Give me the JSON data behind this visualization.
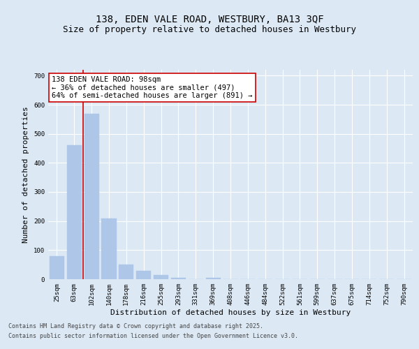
{
  "title_line1": "138, EDEN VALE ROAD, WESTBURY, BA13 3QF",
  "title_line2": "Size of property relative to detached houses in Westbury",
  "xlabel": "Distribution of detached houses by size in Westbury",
  "ylabel": "Number of detached properties",
  "categories": [
    "25sqm",
    "63sqm",
    "102sqm",
    "140sqm",
    "178sqm",
    "216sqm",
    "255sqm",
    "293sqm",
    "331sqm",
    "369sqm",
    "408sqm",
    "446sqm",
    "484sqm",
    "522sqm",
    "561sqm",
    "599sqm",
    "637sqm",
    "675sqm",
    "714sqm",
    "752sqm",
    "790sqm"
  ],
  "values": [
    80,
    460,
    570,
    210,
    50,
    30,
    15,
    5,
    0,
    5,
    0,
    0,
    0,
    0,
    0,
    0,
    0,
    0,
    0,
    0,
    0
  ],
  "bar_color": "#aec6e8",
  "bar_edge_color": "#aec6e8",
  "vline_color": "#cc0000",
  "annotation_text": "138 EDEN VALE ROAD: 98sqm\n← 36% of detached houses are smaller (497)\n64% of semi-detached houses are larger (891) →",
  "annotation_box_color": "#cc0000",
  "annotation_text_color": "#000000",
  "background_color": "#dce9f5",
  "plot_bg_color": "#dce9f5",
  "ylim": [
    0,
    720
  ],
  "yticks": [
    0,
    100,
    200,
    300,
    400,
    500,
    600,
    700
  ],
  "footer_line1": "Contains HM Land Registry data © Crown copyright and database right 2025.",
  "footer_line2": "Contains public sector information licensed under the Open Government Licence v3.0.",
  "grid_color": "#ffffff",
  "title_fontsize": 10,
  "subtitle_fontsize": 9,
  "axis_label_fontsize": 8,
  "tick_fontsize": 6.5,
  "annotation_fontsize": 7.5,
  "footer_fontsize": 6
}
